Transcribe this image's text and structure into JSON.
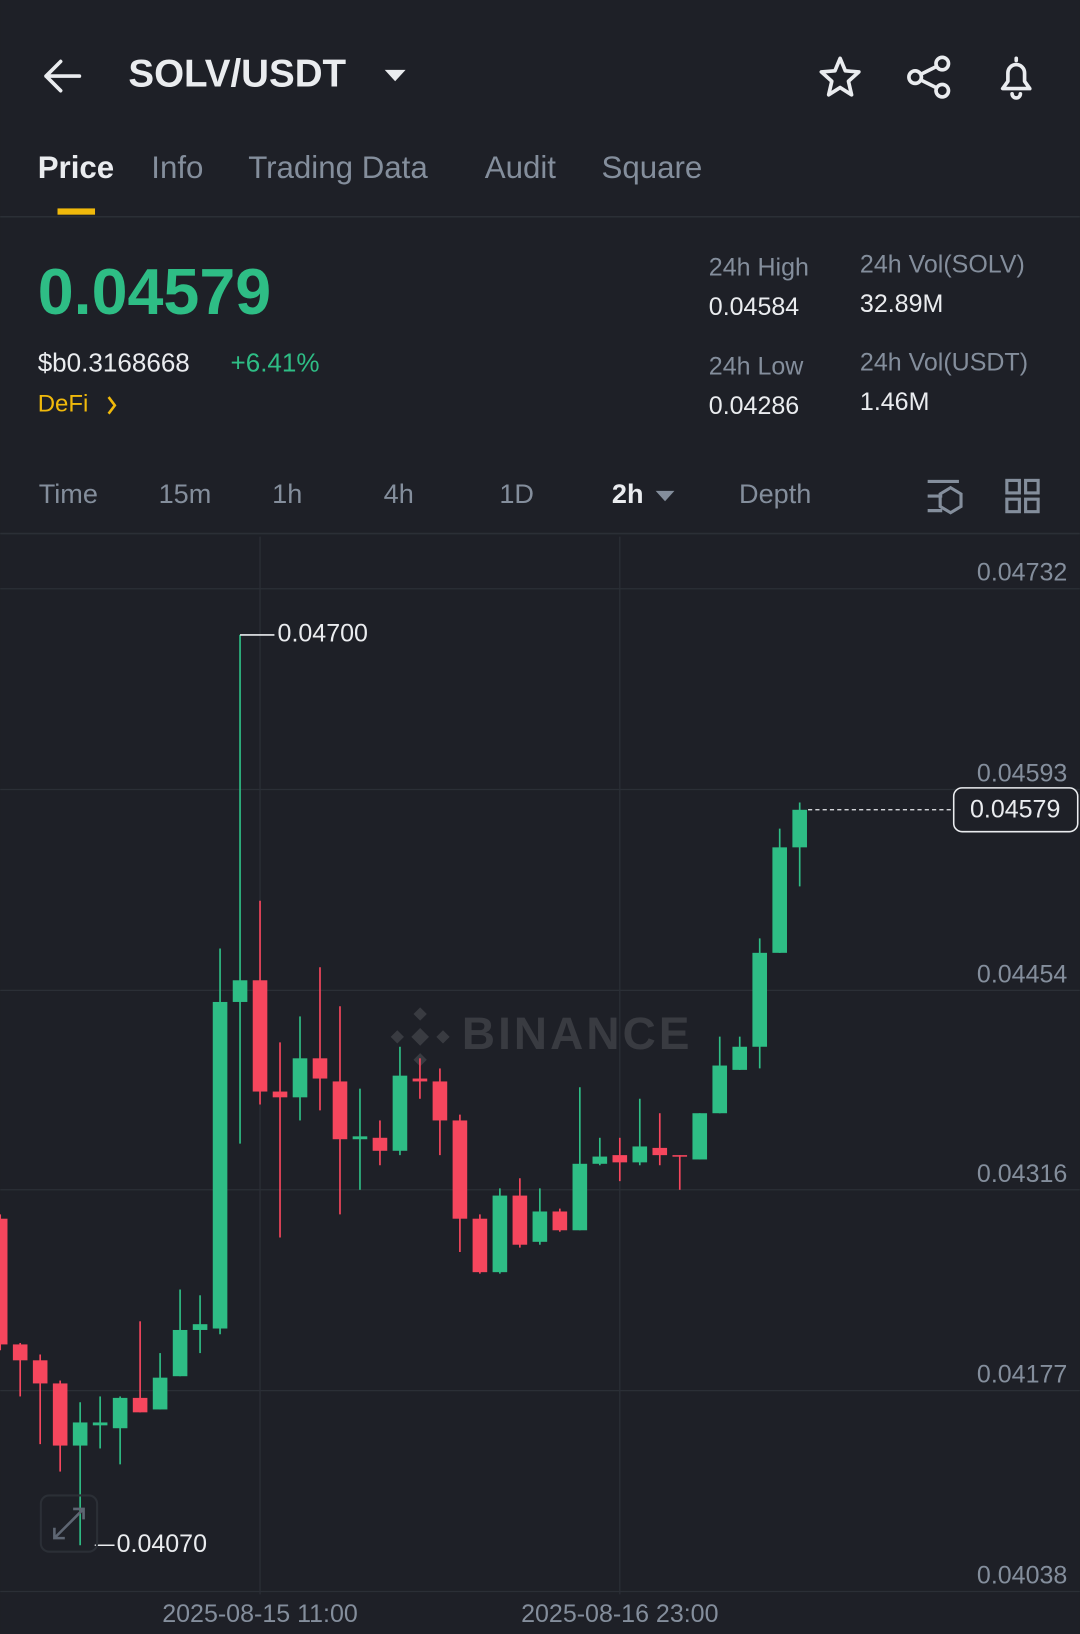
{
  "header": {
    "pair": "SOLV/USDT"
  },
  "tabs": [
    "Price",
    "Info",
    "Trading Data",
    "Audit",
    "Square"
  ],
  "price": {
    "last": "0.04579",
    "fiat": "$b0.3168668",
    "change": "+6.41%",
    "tag": "DeFi"
  },
  "stats": [
    {
      "label": "24h High",
      "value": "0.04584"
    },
    {
      "label": "24h Low",
      "value": "0.04286"
    },
    {
      "label": "24h Vol(SOLV)",
      "value": "32.89M"
    },
    {
      "label": "24h Vol(USDT)",
      "value": "1.46M"
    }
  ],
  "intervals": [
    "Time",
    "15m",
    "1h",
    "4h",
    "1D",
    "2h",
    "Depth"
  ],
  "watermark": "BINANCE",
  "chart_data": {
    "type": "candlestick",
    "categories": [
      null,
      null,
      null,
      null,
      null,
      null,
      null,
      null,
      null,
      null,
      null,
      null,
      null,
      "2025-08-15 11:00",
      null,
      null,
      null,
      null,
      null,
      null,
      null,
      null,
      null,
      null,
      null,
      null,
      null,
      null,
      null,
      null,
      null,
      "2025-08-16 23:00",
      null,
      null,
      null,
      null,
      null,
      null,
      null,
      null,
      null
    ],
    "open": [
      0.04296,
      0.04209,
      0.04198,
      0.04182,
      0.04139,
      0.04153,
      0.04151,
      0.04172,
      0.04164,
      0.04187,
      0.04219,
      0.0422,
      0.04446,
      0.04461,
      0.04384,
      0.0438,
      0.04407,
      0.04391,
      0.04351,
      0.04352,
      0.04343,
      0.04393,
      0.04391,
      0.04364,
      0.04296,
      0.04259,
      0.04312,
      0.0428,
      0.04301,
      0.04288,
      0.04334,
      0.0434,
      0.04335,
      0.04345,
      0.0434,
      0.04337,
      0.04369,
      0.04399,
      0.04415,
      0.0448,
      0.04553
    ],
    "high": [
      0.04299,
      0.0421,
      0.04202,
      0.04184,
      0.04169,
      0.04173,
      0.04173,
      0.04225,
      0.04203,
      0.04247,
      0.04243,
      0.04483,
      0.047,
      0.04516,
      0.04418,
      0.04436,
      0.0447,
      0.04443,
      0.04386,
      0.04364,
      0.04415,
      0.04407,
      0.044,
      0.04368,
      0.04299,
      0.04317,
      0.04324,
      0.04317,
      0.04303,
      0.04387,
      0.04352,
      0.04352,
      0.04379,
      0.04369,
      0.0434,
      0.04369,
      0.04422,
      0.04422,
      0.0449,
      0.04566,
      0.04584
    ],
    "low": [
      0.04205,
      0.04173,
      0.0414,
      0.04121,
      0.0407,
      0.04137,
      0.04126,
      0.04162,
      0.04164,
      0.04187,
      0.04203,
      0.04216,
      0.04348,
      0.04375,
      0.04283,
      0.04364,
      0.04371,
      0.04299,
      0.04316,
      0.04333,
      0.0434,
      0.04379,
      0.0434,
      0.04273,
      0.04258,
      0.04258,
      0.04276,
      0.04278,
      0.04287,
      0.04288,
      0.04333,
      0.04322,
      0.04333,
      0.04333,
      0.04316,
      0.04337,
      0.04369,
      0.04399,
      0.044,
      0.0448,
      0.04526
    ],
    "close": [
      0.04209,
      0.04198,
      0.04182,
      0.04139,
      0.04155,
      0.04155,
      0.04172,
      0.04162,
      0.04186,
      0.04219,
      0.04223,
      0.04446,
      0.04461,
      0.04384,
      0.0438,
      0.04407,
      0.04393,
      0.04351,
      0.04353,
      0.04343,
      0.04395,
      0.04391,
      0.04364,
      0.04296,
      0.04259,
      0.04312,
      0.04278,
      0.04301,
      0.04288,
      0.04334,
      0.04339,
      0.04335,
      0.04346,
      0.0434,
      0.04339,
      0.04369,
      0.04402,
      0.04415,
      0.0448,
      0.04553,
      0.04579
    ],
    "up_color": "#2ebd85",
    "down_color": "#f6465d",
    "ylim": [
      0.04036,
      0.04768
    ],
    "yticks": [
      0.04732,
      0.04593,
      0.04454,
      0.04316,
      0.04177,
      0.04038
    ],
    "grid": true,
    "high_label": {
      "value": 0.047,
      "label": "0.04700"
    },
    "low_label": {
      "value": 0.0407,
      "label": "0.04070"
    },
    "last_price": 0.04579
  }
}
